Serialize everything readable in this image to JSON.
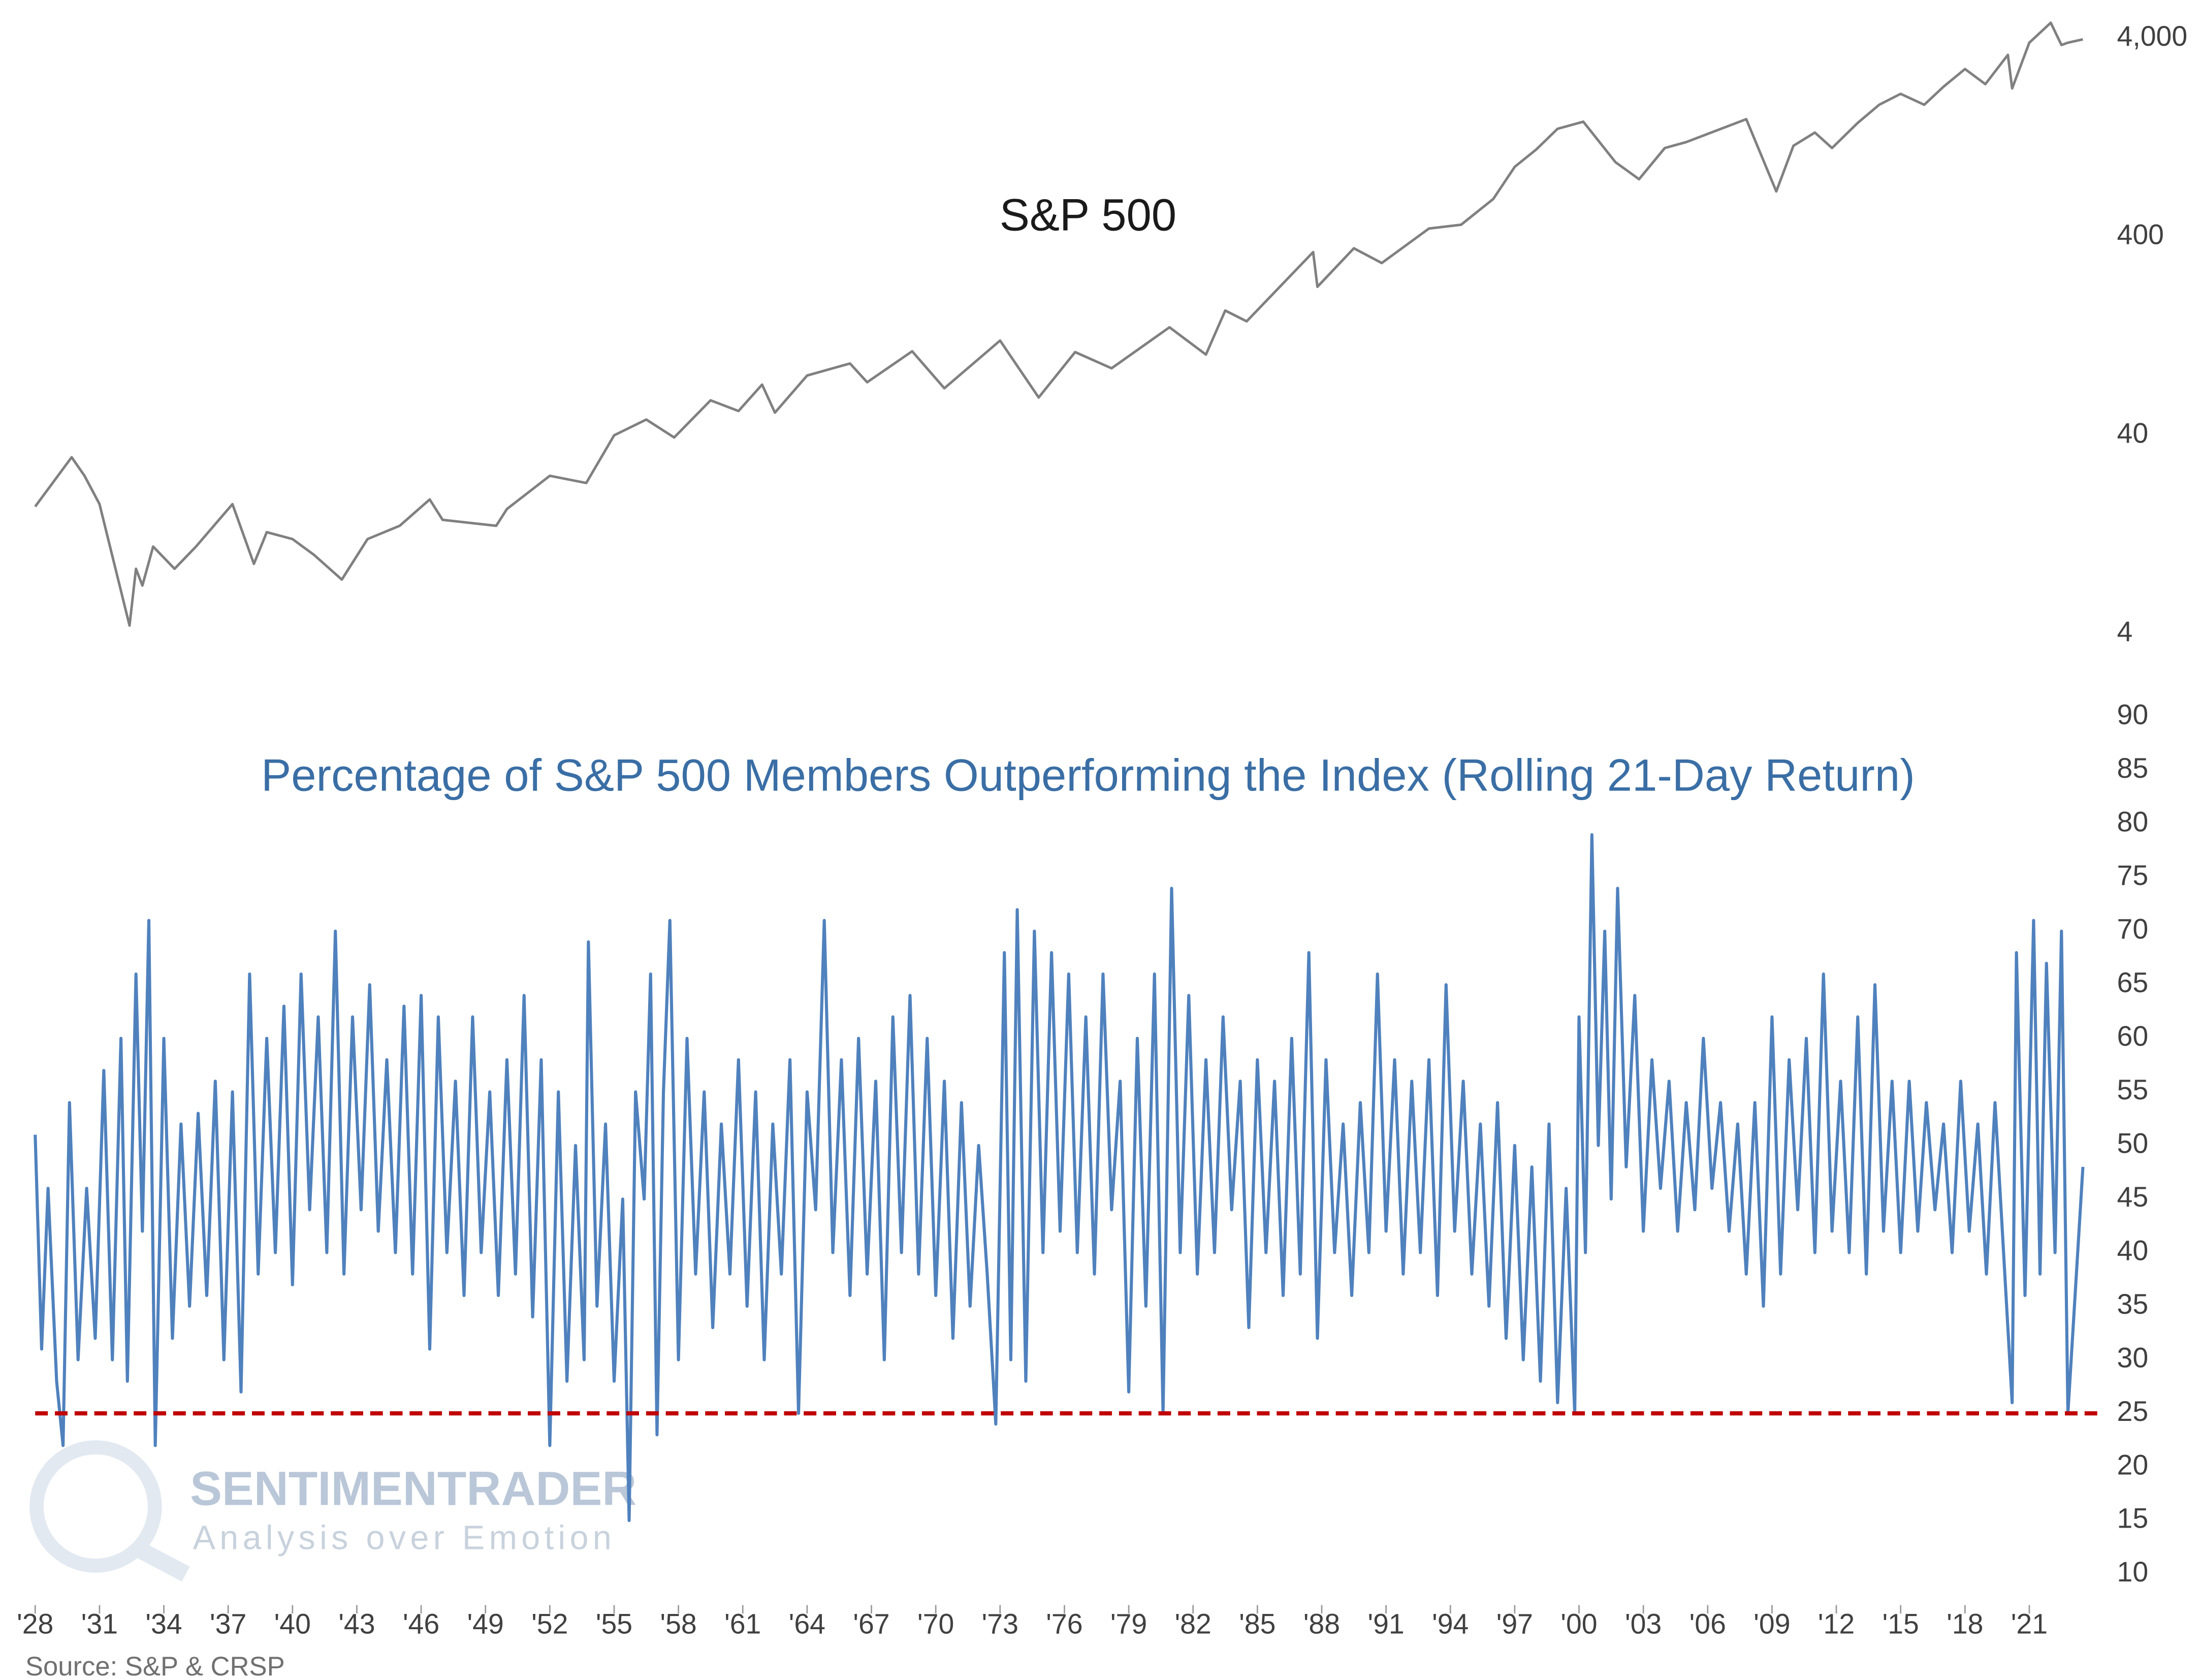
{
  "chart_data": [
    {
      "type": "line",
      "title": "S&P 500",
      "log_scale": true,
      "color": "#808080",
      "xlim": [
        1928,
        2024.3
      ],
      "ylim": [
        4,
        5000
      ],
      "yticks": [
        4,
        40,
        400,
        {
          "value": 4000,
          "label": "4,000"
        }
      ],
      "x": [
        1928.0,
        1929.7,
        1930.3,
        1931.0,
        1932.4,
        1932.7,
        1933.0,
        1933.5,
        1934.5,
        1935.5,
        1937.2,
        1938.2,
        1938.8,
        1940.0,
        1941.0,
        1942.3,
        1943.5,
        1945.0,
        1946.4,
        1947.0,
        1949.5,
        1950.0,
        1952.0,
        1953.7,
        1955.0,
        1956.5,
        1957.8,
        1959.5,
        1960.8,
        1961.9,
        1962.5,
        1964.0,
        1966.0,
        1966.8,
        1968.9,
        1970.4,
        1973.0,
        1974.8,
        1976.5,
        1978.2,
        1980.9,
        1982.6,
        1983.5,
        1984.5,
        1987.6,
        1987.8,
        1989.5,
        1990.8,
        1993.0,
        1994.5,
        1996.0,
        1997.0,
        1998.0,
        1999.0,
        2000.2,
        2001.7,
        2002.8,
        2004.0,
        2005.0,
        2007.8,
        2009.2,
        2010.0,
        2011.0,
        2011.8,
        2013.0,
        2014.0,
        2015.0,
        2016.1,
        2017.0,
        2018.0,
        2018.95,
        2020.0,
        2020.2,
        2021.0,
        2022.0,
        2022.5,
        2022.8,
        2023.5
      ],
      "values": [
        17.5,
        31,
        25,
        18,
        4.4,
        8.5,
        7,
        11,
        8.5,
        11,
        18,
        9,
        13,
        12,
        10,
        7.5,
        12,
        14,
        19,
        15,
        14,
        17,
        25,
        23,
        40,
        48,
        39,
        60,
        53,
        72,
        52,
        80,
        92,
        74,
        106,
        69,
        120,
        62,
        105,
        87,
        140,
        102,
        170,
        150,
        335,
        224,
        350,
        295,
        440,
        460,
        620,
        900,
        1100,
        1400,
        1520,
        950,
        780,
        1120,
        1200,
        1565,
        677,
        1150,
        1340,
        1120,
        1500,
        1850,
        2100,
        1850,
        2280,
        2800,
        2350,
        3300,
        2237,
        3800,
        4790,
        3700,
        3800,
        3950
      ]
    },
    {
      "type": "line",
      "title": "Percentage of S&P 500 Members Outperforming the Index (Rolling 21-Day Return)",
      "color": "#4f81bd",
      "xlim": [
        1928,
        2024.3
      ],
      "ylim": [
        10,
        90
      ],
      "yticks": [
        10,
        15,
        20,
        25,
        30,
        35,
        40,
        45,
        50,
        55,
        60,
        65,
        70,
        75,
        80,
        85,
        90
      ],
      "xticks": [
        {
          "value": 1928,
          "label": "'28"
        },
        {
          "value": 1931,
          "label": "'31"
        },
        {
          "value": 1934,
          "label": "'34"
        },
        {
          "value": 1937,
          "label": "'37"
        },
        {
          "value": 1940,
          "label": "'40"
        },
        {
          "value": 1943,
          "label": "'43"
        },
        {
          "value": 1946,
          "label": "'46"
        },
        {
          "value": 1949,
          "label": "'49"
        },
        {
          "value": 1952,
          "label": "'52"
        },
        {
          "value": 1955,
          "label": "'55"
        },
        {
          "value": 1958,
          "label": "'58"
        },
        {
          "value": 1961,
          "label": "'61"
        },
        {
          "value": 1964,
          "label": "'64"
        },
        {
          "value": 1967,
          "label": "'67"
        },
        {
          "value": 1970,
          "label": "'70"
        },
        {
          "value": 1973,
          "label": "'73"
        },
        {
          "value": 1976,
          "label": "'76"
        },
        {
          "value": 1979,
          "label": "'79"
        },
        {
          "value": 1982,
          "label": "'82"
        },
        {
          "value": 1985,
          "label": "'85"
        },
        {
          "value": 1988,
          "label": "'88"
        },
        {
          "value": 1991,
          "label": "'91"
        },
        {
          "value": 1994,
          "label": "'94"
        },
        {
          "value": 1997,
          "label": "'97"
        },
        {
          "value": 2000,
          "label": "'00"
        },
        {
          "value": 2003,
          "label": "'03"
        },
        {
          "value": 2006,
          "label": "'06"
        },
        {
          "value": 2009,
          "label": "'09"
        },
        {
          "value": 2012,
          "label": "'12"
        },
        {
          "value": 2015,
          "label": "'15"
        },
        {
          "value": 2018,
          "label": "'18"
        },
        {
          "value": 2021,
          "label": "'21"
        }
      ],
      "reference_line": {
        "value": 25,
        "color": "#c00000",
        "dashed": true
      },
      "x": [
        1928.0,
        1928.3,
        1928.6,
        1929.0,
        1929.3,
        1929.6,
        1930.0,
        1930.4,
        1930.8,
        1931.2,
        1931.6,
        1932.0,
        1932.3,
        1932.7,
        1933.0,
        1933.3,
        1933.6,
        1934.0,
        1934.4,
        1934.8,
        1935.2,
        1935.6,
        1936.0,
        1936.4,
        1936.8,
        1937.2,
        1937.6,
        1938.0,
        1938.4,
        1938.8,
        1939.2,
        1939.6,
        1940.0,
        1940.4,
        1940.8,
        1941.2,
        1941.6,
        1942.0,
        1942.4,
        1942.8,
        1943.2,
        1943.6,
        1944.0,
        1944.4,
        1944.8,
        1945.2,
        1945.6,
        1946.0,
        1946.4,
        1946.8,
        1947.2,
        1947.6,
        1948.0,
        1948.4,
        1948.8,
        1949.2,
        1949.6,
        1950.0,
        1950.4,
        1950.8,
        1951.2,
        1951.6,
        1952.0,
        1952.4,
        1952.8,
        1953.2,
        1953.6,
        1953.8,
        1954.2,
        1954.6,
        1955.0,
        1955.4,
        1955.7,
        1956.0,
        1956.4,
        1956.7,
        1957.0,
        1957.3,
        1957.6,
        1958.0,
        1958.4,
        1958.8,
        1959.2,
        1959.6,
        1960.0,
        1960.4,
        1960.8,
        1961.2,
        1961.6,
        1962.0,
        1962.4,
        1962.8,
        1963.2,
        1963.6,
        1964.0,
        1964.4,
        1964.8,
        1965.2,
        1965.6,
        1966.0,
        1966.4,
        1966.8,
        1967.2,
        1967.6,
        1968.0,
        1968.4,
        1968.8,
        1969.2,
        1969.6,
        1970.0,
        1970.4,
        1970.8,
        1971.2,
        1971.6,
        1972.0,
        1972.4,
        1972.8,
        1973.2,
        1973.5,
        1973.8,
        1974.2,
        1974.6,
        1975.0,
        1975.4,
        1975.8,
        1976.2,
        1976.6,
        1977.0,
        1977.4,
        1977.8,
        1978.2,
        1978.6,
        1979.0,
        1979.4,
        1979.8,
        1980.2,
        1980.6,
        1981.0,
        1981.4,
        1981.8,
        1982.2,
        1982.6,
        1983.0,
        1983.4,
        1983.8,
        1984.2,
        1984.6,
        1985.0,
        1985.4,
        1985.8,
        1986.2,
        1986.6,
        1987.0,
        1987.4,
        1987.8,
        1988.2,
        1988.6,
        1989.0,
        1989.4,
        1989.8,
        1990.2,
        1990.6,
        1991.0,
        1991.4,
        1991.8,
        1992.2,
        1992.6,
        1993.0,
        1993.4,
        1993.8,
        1994.2,
        1994.6,
        1995.0,
        1995.4,
        1995.8,
        1996.2,
        1996.6,
        1997.0,
        1997.4,
        1997.8,
        1998.2,
        1998.6,
        1999.0,
        1999.4,
        1999.8,
        2000.0,
        2000.3,
        2000.6,
        2000.9,
        2001.2,
        2001.5,
        2001.8,
        2002.2,
        2002.6,
        2003.0,
        2003.4,
        2003.8,
        2004.2,
        2004.6,
        2005.0,
        2005.4,
        2005.8,
        2006.2,
        2006.6,
        2007.0,
        2007.4,
        2007.8,
        2008.2,
        2008.6,
        2009.0,
        2009.4,
        2009.8,
        2010.2,
        2010.6,
        2011.0,
        2011.4,
        2011.8,
        2012.2,
        2012.6,
        2013.0,
        2013.4,
        2013.8,
        2014.2,
        2014.6,
        2015.0,
        2015.4,
        2015.8,
        2016.2,
        2016.6,
        2017.0,
        2017.4,
        2017.8,
        2018.2,
        2018.6,
        2019.0,
        2019.4,
        2019.8,
        2020.2,
        2020.4,
        2020.8,
        2021.2,
        2021.5,
        2021.8,
        2022.2,
        2022.5,
        2022.8,
        2023.5
      ],
      "values": [
        51,
        31,
        46,
        28,
        22,
        54,
        30,
        46,
        32,
        57,
        30,
        60,
        28,
        66,
        42,
        71,
        22,
        60,
        32,
        52,
        35,
        53,
        36,
        56,
        30,
        55,
        27,
        66,
        38,
        60,
        40,
        63,
        37,
        66,
        44,
        62,
        40,
        70,
        38,
        62,
        44,
        65,
        42,
        58,
        40,
        63,
        38,
        64,
        31,
        62,
        40,
        56,
        36,
        62,
        40,
        55,
        36,
        58,
        38,
        64,
        34,
        58,
        22,
        55,
        28,
        50,
        30,
        69,
        35,
        52,
        28,
        45,
        15,
        55,
        45,
        66,
        23,
        55,
        71,
        30,
        60,
        38,
        55,
        33,
        52,
        38,
        58,
        35,
        55,
        30,
        52,
        38,
        58,
        25,
        55,
        44,
        71,
        40,
        58,
        36,
        60,
        38,
        56,
        30,
        62,
        40,
        64,
        38,
        60,
        36,
        56,
        32,
        54,
        35,
        50,
        38,
        24,
        68,
        30,
        72,
        28,
        70,
        40,
        68,
        42,
        66,
        40,
        62,
        38,
        66,
        44,
        56,
        27,
        60,
        35,
        66,
        25,
        74,
        40,
        64,
        38,
        58,
        40,
        62,
        44,
        56,
        33,
        58,
        40,
        56,
        36,
        60,
        38,
        68,
        32,
        58,
        40,
        52,
        36,
        54,
        40,
        66,
        42,
        58,
        38,
        56,
        40,
        58,
        36,
        65,
        42,
        56,
        38,
        52,
        35,
        54,
        32,
        50,
        30,
        48,
        28,
        52,
        26,
        46,
        25,
        62,
        40,
        79,
        50,
        70,
        45,
        74,
        48,
        64,
        42,
        58,
        46,
        56,
        42,
        54,
        44,
        60,
        46,
        54,
        42,
        52,
        38,
        54,
        35,
        62,
        38,
        58,
        44,
        60,
        40,
        66,
        42,
        56,
        40,
        62,
        38,
        65,
        42,
        56,
        40,
        56,
        42,
        54,
        44,
        52,
        40,
        56,
        42,
        52,
        38,
        54,
        40,
        26,
        68,
        36,
        71,
        38,
        67,
        40,
        70,
        25,
        48
      ]
    }
  ],
  "watermark": {
    "brand": "SENTIMENTRADER",
    "tagline": "Analysis over Emotion"
  },
  "source": "Source: S&P & CRSP"
}
